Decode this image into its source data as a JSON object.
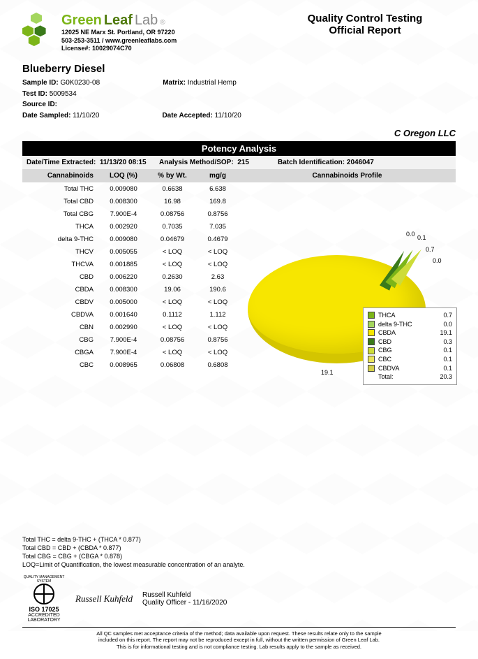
{
  "header": {
    "brand_green": "Green",
    "brand_leaf": "Leaf",
    "brand_lab": "Lab",
    "address": "12025 NE Marx St. Portland, OR 97220",
    "contact": "503-253-3511 / www.greenleaflabs.com",
    "license": "License#: 10029074C70",
    "report_title_1": "Quality Control Testing",
    "report_title_2": "Official Report",
    "logo_colors": {
      "light": "#a4d65e",
      "mid": "#7cb518",
      "dark": "#3a7a1a"
    }
  },
  "sample": {
    "name": "Blueberry Diesel",
    "sample_id_label": "Sample ID:",
    "sample_id": "G0K0230-08",
    "matrix_label": "Matrix:",
    "matrix": "Industrial Hemp",
    "test_id_label": "Test ID:",
    "test_id": "5009534",
    "source_id_label": "Source ID:",
    "date_sampled_label": "Date Sampled:",
    "date_sampled": "11/10/20",
    "date_accepted_label": "Date Accepted:",
    "date_accepted": "11/10/20",
    "client": "C Oregon LLC"
  },
  "analysis": {
    "section_title": "Potency Analysis",
    "extracted_label": "Date/Time Extracted:",
    "extracted": "11/13/20  08:15",
    "method_label": "Analysis Method/SOP:",
    "method": "215",
    "batch_label": "Batch Identification:",
    "batch": "2046047",
    "col_cannabinoids": "Cannabinoids",
    "col_loq": "LOQ (%)",
    "col_wt": "% by Wt.",
    "col_mg": "mg/g",
    "col_profile": "Cannabinoids Profile"
  },
  "rows": [
    {
      "name": "Total THC",
      "loq": "0.009080",
      "wt": "0.6638",
      "mg": "6.638"
    },
    {
      "name": "Total CBD",
      "loq": "0.008300",
      "wt": "16.98",
      "mg": "169.8"
    },
    {
      "name": "Total CBG",
      "loq": "7.900E-4",
      "wt": "0.08756",
      "mg": "0.8756"
    },
    {
      "name": "THCA",
      "loq": "0.002920",
      "wt": "0.7035",
      "mg": "7.035"
    },
    {
      "name": "delta 9-THC",
      "loq": "0.009080",
      "wt": "0.04679",
      "mg": "0.4679"
    },
    {
      "name": "THCV",
      "loq": "0.005055",
      "wt": "< LOQ",
      "mg": "< LOQ"
    },
    {
      "name": "THCVA",
      "loq": "0.001885",
      "wt": "< LOQ",
      "mg": "< LOQ"
    },
    {
      "name": "CBD",
      "loq": "0.006220",
      "wt": "0.2630",
      "mg": "2.63"
    },
    {
      "name": "CBDA",
      "loq": "0.008300",
      "wt": "19.06",
      "mg": "190.6"
    },
    {
      "name": "CBDV",
      "loq": "0.005000",
      "wt": "< LOQ",
      "mg": "< LOQ"
    },
    {
      "name": "CBDVA",
      "loq": "0.001640",
      "wt": "0.1112",
      "mg": "1.112"
    },
    {
      "name": "CBN",
      "loq": "0.002990",
      "wt": "< LOQ",
      "mg": "< LOQ"
    },
    {
      "name": "CBG",
      "loq": "7.900E-4",
      "wt": "0.08756",
      "mg": "0.8756"
    },
    {
      "name": "CBGA",
      "loq": "7.900E-4",
      "wt": "< LOQ",
      "mg": "< LOQ"
    },
    {
      "name": "CBC",
      "loq": "0.008965",
      "wt": "0.06808",
      "mg": "0.6808"
    }
  ],
  "chart": {
    "type": "pie",
    "big_slice_label": "19.1",
    "small_labels": [
      "0.0",
      "0.1",
      "0.7",
      "0.0"
    ],
    "colors": {
      "CBDA": "#f7e600",
      "THCA": "#7cb518",
      "delta9": "#a4d65e",
      "CBD": "#3a7a1a",
      "CBG": "#cddc39",
      "CBC": "#e8e35a",
      "CBDVA": "#d4d04a"
    },
    "legend": [
      {
        "label": "THCA",
        "val": "0.7",
        "color": "#7cb518"
      },
      {
        "label": "delta 9-THC",
        "val": "0.0",
        "color": "#a4d65e"
      },
      {
        "label": "CBDA",
        "val": "19.1",
        "color": "#f7e600"
      },
      {
        "label": "CBD",
        "val": "0.3",
        "color": "#3a7a1a"
      },
      {
        "label": "CBG",
        "val": "0.1",
        "color": "#cddc39"
      },
      {
        "label": "CBC",
        "val": "0.1",
        "color": "#e8e35a"
      },
      {
        "label": "CBDVA",
        "val": "0.1",
        "color": "#d4d04a"
      },
      {
        "label": "Total:",
        "val": "20.3",
        "color": ""
      }
    ]
  },
  "footnotes": {
    "l1": "Total THC =  delta 9-THC + (THCA * 0.877)",
    "l2": "Total CBD =  CBD + (CBDA * 0.877)",
    "l3": "Total CBG = CBG + (CBGA * 0.878)",
    "l4": "LOQ=Limit of Quantification, the lowest measurable concentration of an analyte."
  },
  "signature": {
    "name": "Russell Kuhfeld",
    "title": "Quality Officer - 11/16/2020",
    "cursive": "Russell Kuhfeld",
    "iso": "ISO 17025",
    "accredited": "ACCREDITED LABORATORY",
    "system_text": "QUALITY MANAGEMENT SYSTEM"
  },
  "disclaimer": {
    "l1": "All QC samples met acceptance criteria of the method; data available upon request. These results relate only to the sample",
    "l2": "included on this report. The report may not be reproduced except in full, without the written permission of Green Leaf Lab.",
    "l3": "This is for informational testing and is not compliance testing. Lab results apply to the sample as received."
  }
}
